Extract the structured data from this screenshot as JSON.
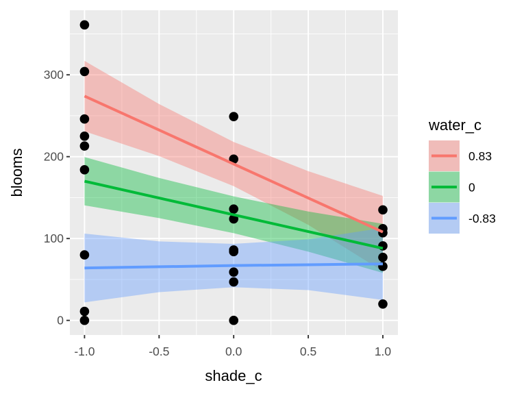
{
  "chart_data": {
    "type": "scatter",
    "title": "",
    "xlabel": "shade_c",
    "ylabel": "blooms",
    "xlim": [
      -1.1,
      1.1
    ],
    "ylim": [
      -15,
      383
    ],
    "x_ticks": [
      -1.0,
      -0.5,
      0.0,
      0.5,
      1.0
    ],
    "x_tick_labels": [
      "-1.0",
      "-0.5",
      "0.0",
      "0.5",
      "1.0"
    ],
    "y_ticks": [
      0,
      100,
      200,
      300
    ],
    "y_tick_labels": [
      "0",
      "100",
      "200",
      "300"
    ],
    "grid": true,
    "legend": {
      "title": "water_c",
      "placement": "right",
      "entries": [
        {
          "label": "0.83",
          "color": "#F8766D"
        },
        {
          "label": "0",
          "color": "#00BA38"
        },
        {
          "label": "-0.83",
          "color": "#619CFF"
        }
      ]
    },
    "points": {
      "color": "#000000",
      "x": [
        -1,
        -1,
        -1,
        -1,
        -1,
        -1,
        -1,
        -1,
        -1,
        0,
        0,
        0,
        0,
        0,
        0,
        0,
        0,
        0,
        1,
        1,
        1,
        1,
        1,
        1,
        1
      ],
      "y": [
        361,
        304,
        246,
        225,
        213,
        184,
        80,
        11,
        0,
        249,
        197,
        136,
        124,
        86,
        84,
        59,
        47,
        0,
        135,
        112,
        107,
        91,
        77,
        66,
        20
      ]
    },
    "series": [
      {
        "name": "0.83",
        "color": "#F8766D",
        "x": [
          -1,
          -0.5,
          0,
          0.5,
          1
        ],
        "fit": [
          274,
          232.5,
          191,
          149.5,
          108
        ],
        "lower": [
          231,
          200.7,
          164,
          116.7,
          60
        ],
        "upper": [
          317,
          264.3,
          218,
          182.3,
          152
        ]
      },
      {
        "name": "0",
        "color": "#00BA38",
        "x": [
          -1,
          -0.5,
          0,
          0.5,
          1
        ],
        "fit": [
          170,
          149.5,
          129,
          108.5,
          88
        ],
        "lower": [
          140.5,
          125,
          106.5,
          84,
          58
        ],
        "upper": [
          199.5,
          174,
          151.5,
          133,
          118
        ]
      },
      {
        "name": "-0.83",
        "color": "#619CFF",
        "x": [
          -1,
          -0.5,
          0,
          0.5,
          1
        ],
        "fit": [
          64,
          65.5,
          67,
          68,
          69
        ],
        "lower": [
          22,
          34.5,
          40.5,
          37,
          25
        ],
        "upper": [
          106,
          96.5,
          93.5,
          99,
          113
        ]
      }
    ]
  }
}
